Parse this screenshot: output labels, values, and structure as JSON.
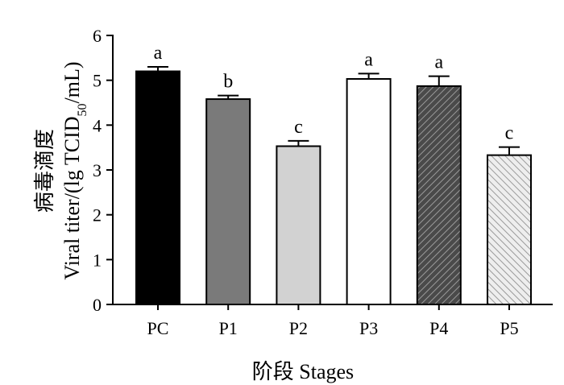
{
  "chart_data": {
    "type": "bar",
    "categories": [
      "PC",
      "P1",
      "P2",
      "P3",
      "P4",
      "P5"
    ],
    "values": [
      5.2,
      4.58,
      3.53,
      5.03,
      4.87,
      3.33
    ],
    "errors": [
      0.1,
      0.08,
      0.12,
      0.12,
      0.22,
      0.18
    ],
    "significance": [
      "a",
      "b",
      "c",
      "a",
      "a",
      "c"
    ],
    "fills": [
      "#000000",
      "#7a7a7a",
      "#d2d2d2",
      "#ffffff",
      "hatch-dark",
      "hatch-light"
    ],
    "ylim": [
      0,
      6
    ],
    "yticks": [
      0,
      1,
      2,
      3,
      4,
      5,
      6
    ],
    "ylabel_cn": "病毒滴度",
    "ylabel_prefix": "Viral titer/(lg TCID",
    "ylabel_sub": "50",
    "ylabel_suffix": "/mL)",
    "xlabel": "阶段 Stages",
    "grid": false
  }
}
